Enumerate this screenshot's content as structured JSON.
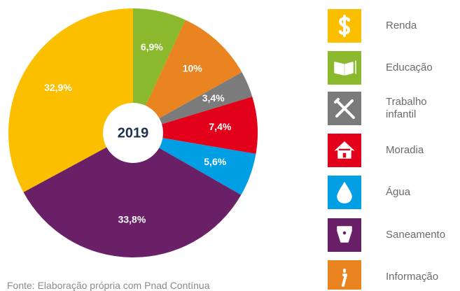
{
  "chart_data": {
    "type": "donut",
    "center_label": "2019",
    "categories": [
      "Renda",
      "Educação",
      "Trabalho infantil",
      "Moradia",
      "Água",
      "Saneamento",
      "Informação"
    ],
    "values": [
      32.9,
      6.9,
      3.4,
      7.4,
      5.6,
      33.8,
      10
    ],
    "value_labels": [
      "32,9%",
      "6,9%",
      "3,4%",
      "7,4%",
      "5,6%",
      "33,8%",
      "10%"
    ],
    "colors": [
      "#fbbf00",
      "#8ab92d",
      "#7b7b7b",
      "#e2001a",
      "#009fe3",
      "#6a2066",
      "#e98420"
    ],
    "source": "Fonte: Elaboração própria com Pnad Contínua"
  }
}
